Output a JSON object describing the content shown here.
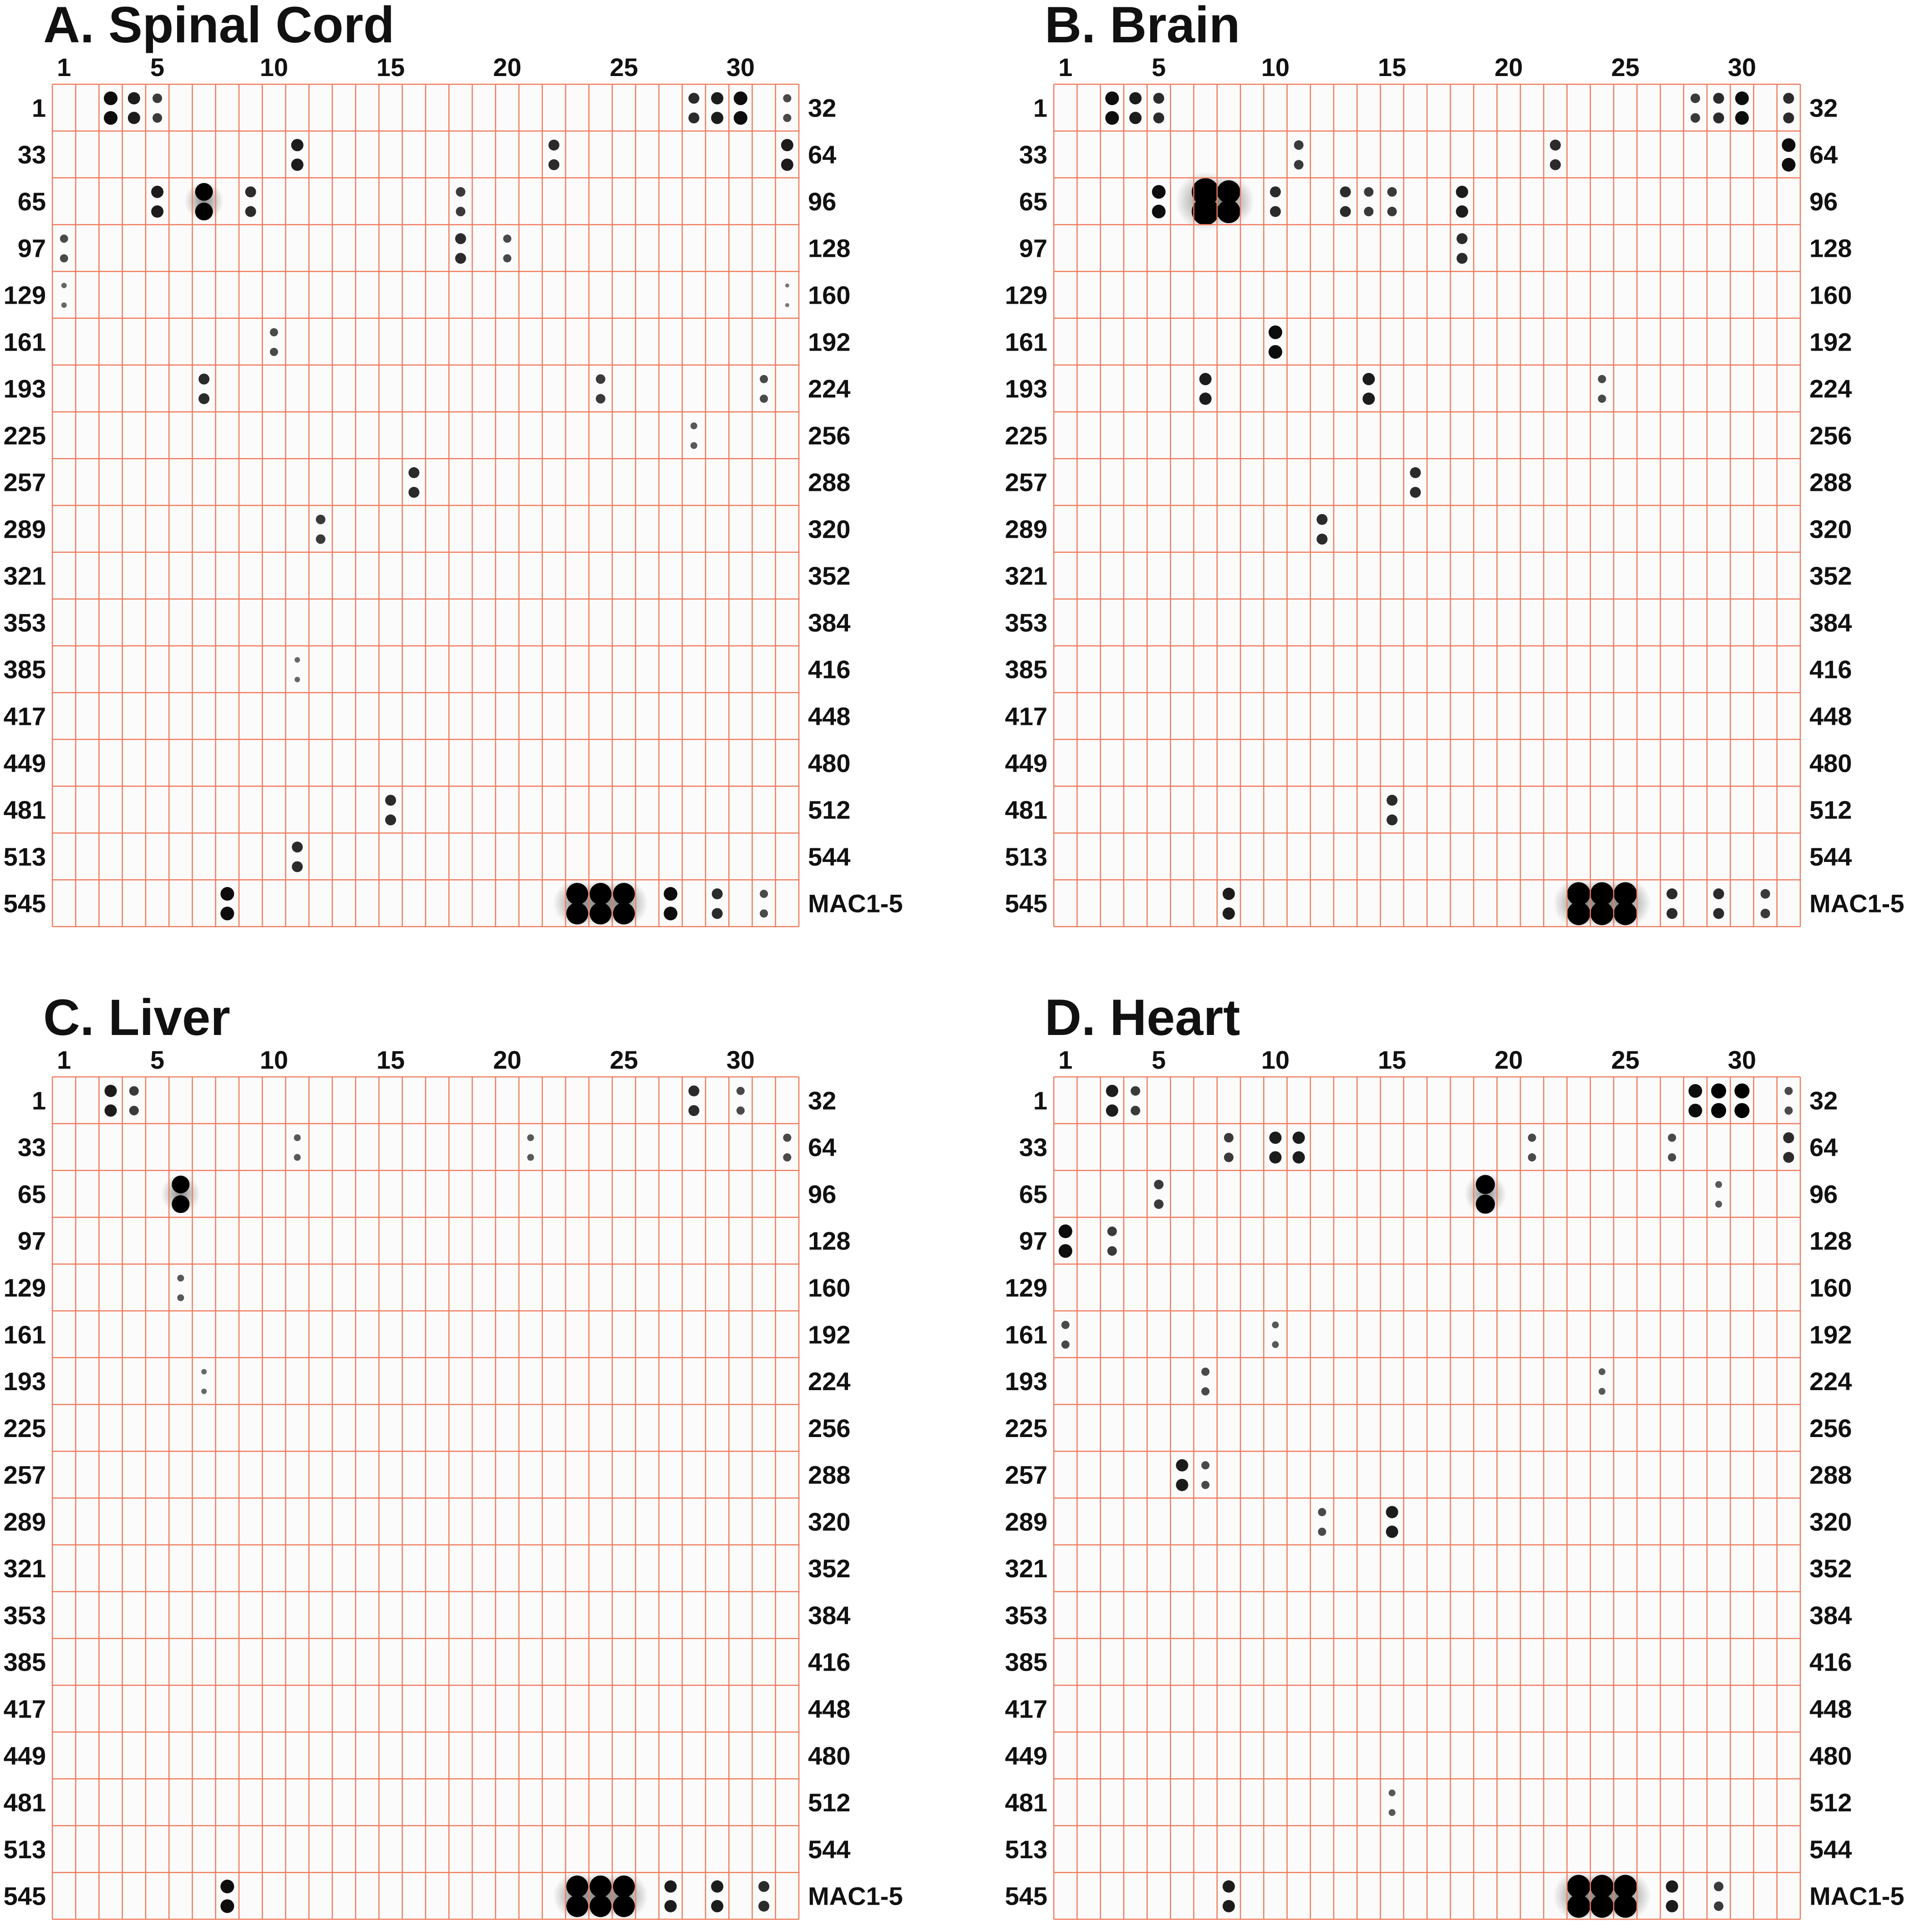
{
  "column_labels": [
    "1",
    "5",
    "10",
    "15",
    "20",
    "25",
    "30"
  ],
  "row_labels_left": [
    "1",
    "33",
    "65",
    "97",
    "129",
    "161",
    "193",
    "225",
    "257",
    "289",
    "321",
    "353",
    "385",
    "417",
    "449",
    "481",
    "513",
    "545"
  ],
  "row_labels_right": [
    "32",
    "64",
    "96",
    "128",
    "160",
    "192",
    "224",
    "256",
    "288",
    "320",
    "352",
    "384",
    "416",
    "448",
    "480",
    "512",
    "544",
    "MAC1-5"
  ],
  "colors": {
    "grid": "#f07a5a",
    "spot": "#000000",
    "text": "#111111"
  },
  "panels": [
    {
      "id": "a",
      "title": "A. Spinal Cord",
      "spots": [
        [
          0,
          3,
          1
        ],
        [
          0,
          4,
          0.9
        ],
        [
          0,
          5,
          0.7
        ],
        [
          0,
          28,
          0.8
        ],
        [
          0,
          29,
          0.9
        ],
        [
          0,
          30,
          1
        ],
        [
          0,
          32,
          0.6
        ],
        [
          1,
          11,
          0.9
        ],
        [
          1,
          22,
          0.8
        ],
        [
          1,
          32,
          0.9
        ],
        [
          2,
          5,
          0.9
        ],
        [
          2,
          7,
          1.3
        ],
        [
          2,
          9,
          0.8
        ],
        [
          2,
          18,
          0.7
        ],
        [
          3,
          1,
          0.6
        ],
        [
          3,
          18,
          0.8
        ],
        [
          3,
          20,
          0.6
        ],
        [
          4,
          1,
          0.4
        ],
        [
          4,
          32,
          0.3
        ],
        [
          5,
          10,
          0.6
        ],
        [
          6,
          7,
          0.8
        ],
        [
          6,
          24,
          0.7
        ],
        [
          6,
          31,
          0.6
        ],
        [
          7,
          28,
          0.5
        ],
        [
          8,
          16,
          0.8
        ],
        [
          9,
          12,
          0.7
        ],
        [
          12,
          11,
          0.4
        ],
        [
          15,
          15,
          0.8
        ],
        [
          16,
          11,
          0.8
        ],
        [
          17,
          8,
          1
        ],
        [
          17,
          23,
          1.6
        ],
        [
          17,
          24,
          1.6
        ],
        [
          17,
          25,
          1.6
        ],
        [
          17,
          27,
          1
        ],
        [
          17,
          29,
          0.8
        ],
        [
          17,
          31,
          0.6
        ]
      ]
    },
    {
      "id": "b",
      "title": "B. Brain",
      "spots": [
        [
          0,
          3,
          1
        ],
        [
          0,
          4,
          0.9
        ],
        [
          0,
          5,
          0.8
        ],
        [
          0,
          28,
          0.7
        ],
        [
          0,
          29,
          0.8
        ],
        [
          0,
          30,
          1
        ],
        [
          0,
          32,
          0.8
        ],
        [
          1,
          11,
          0.7
        ],
        [
          1,
          22,
          0.8
        ],
        [
          1,
          32,
          1
        ],
        [
          2,
          5,
          1
        ],
        [
          2,
          7,
          2
        ],
        [
          2,
          8,
          1.7
        ],
        [
          2,
          10,
          0.8
        ],
        [
          2,
          13,
          0.8
        ],
        [
          2,
          14,
          0.7
        ],
        [
          2,
          15,
          0.7
        ],
        [
          2,
          18,
          0.9
        ],
        [
          3,
          18,
          0.8
        ],
        [
          5,
          10,
          1
        ],
        [
          6,
          7,
          0.9
        ],
        [
          6,
          14,
          0.9
        ],
        [
          6,
          24,
          0.6
        ],
        [
          8,
          16,
          0.8
        ],
        [
          9,
          12,
          0.8
        ],
        [
          15,
          15,
          0.8
        ],
        [
          17,
          8,
          0.9
        ],
        [
          17,
          23,
          1.7
        ],
        [
          17,
          24,
          1.7
        ],
        [
          17,
          25,
          1.7
        ],
        [
          17,
          27,
          0.8
        ],
        [
          17,
          29,
          0.8
        ],
        [
          17,
          31,
          0.7
        ]
      ]
    },
    {
      "id": "c",
      "title": "C. Liver",
      "spots": [
        [
          0,
          3,
          0.9
        ],
        [
          0,
          4,
          0.7
        ],
        [
          0,
          28,
          0.8
        ],
        [
          0,
          30,
          0.6
        ],
        [
          1,
          11,
          0.5
        ],
        [
          1,
          21,
          0.5
        ],
        [
          1,
          32,
          0.6
        ],
        [
          2,
          6,
          1.3
        ],
        [
          4,
          6,
          0.5
        ],
        [
          6,
          7,
          0.4
        ],
        [
          17,
          8,
          1
        ],
        [
          17,
          23,
          1.6
        ],
        [
          17,
          24,
          1.6
        ],
        [
          17,
          25,
          1.6
        ],
        [
          17,
          27,
          0.9
        ],
        [
          17,
          29,
          0.9
        ],
        [
          17,
          31,
          0.8
        ]
      ]
    },
    {
      "id": "d",
      "title": "D. Heart",
      "spots": [
        [
          0,
          3,
          0.9
        ],
        [
          0,
          4,
          0.7
        ],
        [
          0,
          28,
          1
        ],
        [
          0,
          29,
          1.1
        ],
        [
          0,
          30,
          1.1
        ],
        [
          0,
          32,
          0.6
        ],
        [
          1,
          8,
          0.7
        ],
        [
          1,
          10,
          0.9
        ],
        [
          1,
          11,
          0.9
        ],
        [
          1,
          21,
          0.6
        ],
        [
          1,
          27,
          0.6
        ],
        [
          1,
          32,
          0.8
        ],
        [
          2,
          5,
          0.7
        ],
        [
          2,
          19,
          1.4
        ],
        [
          2,
          29,
          0.5
        ],
        [
          3,
          1,
          1
        ],
        [
          3,
          3,
          0.7
        ],
        [
          5,
          1,
          0.6
        ],
        [
          5,
          10,
          0.5
        ],
        [
          6,
          7,
          0.6
        ],
        [
          6,
          24,
          0.5
        ],
        [
          8,
          6,
          0.9
        ],
        [
          8,
          7,
          0.6
        ],
        [
          9,
          12,
          0.6
        ],
        [
          9,
          15,
          0.9
        ],
        [
          15,
          15,
          0.5
        ],
        [
          17,
          8,
          0.9
        ],
        [
          17,
          23,
          1.7
        ],
        [
          17,
          24,
          1.7
        ],
        [
          17,
          25,
          1.7
        ],
        [
          17,
          27,
          0.9
        ],
        [
          17,
          29,
          0.7
        ]
      ]
    }
  ]
}
